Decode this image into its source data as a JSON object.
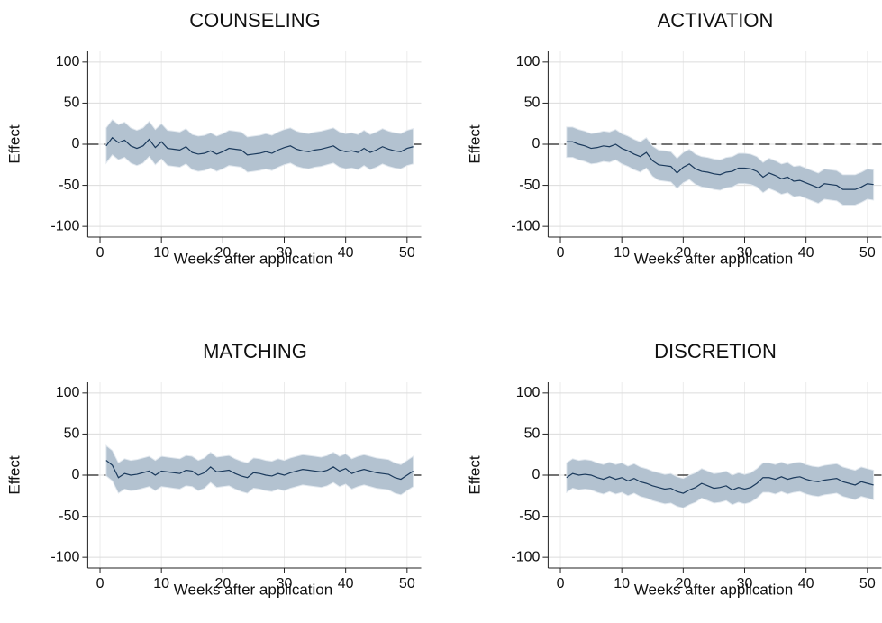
{
  "chart_data": [
    {
      "type": "line",
      "title": "COUNSELING",
      "xlabel": "Weeks after application",
      "ylabel": "Effect",
      "x": [
        1,
        2,
        3,
        4,
        5,
        6,
        7,
        8,
        9,
        10,
        11,
        12,
        13,
        14,
        15,
        16,
        17,
        18,
        19,
        20,
        21,
        22,
        23,
        24,
        25,
        26,
        27,
        28,
        29,
        30,
        31,
        32,
        33,
        34,
        35,
        36,
        37,
        38,
        39,
        40,
        41,
        42,
        43,
        44,
        45,
        46,
        47,
        48,
        49,
        50,
        51
      ],
      "values": [
        -2,
        8,
        2,
        5,
        -2,
        -5,
        -2,
        6,
        -4,
        3,
        -5,
        -6,
        -7,
        -3,
        -10,
        -12,
        -11,
        -8,
        -12,
        -9,
        -5,
        -6,
        -7,
        -13,
        -12,
        -11,
        -9,
        -11,
        -7,
        -4,
        -2,
        -6,
        -8,
        -9,
        -7,
        -6,
        -4,
        -2,
        -7,
        -9,
        -8,
        -10,
        -5,
        -10,
        -7,
        -3,
        -6,
        -8,
        -9,
        -5,
        -3
      ],
      "upper": [
        20,
        30,
        24,
        27,
        20,
        17,
        20,
        28,
        18,
        25,
        17,
        16,
        15,
        19,
        12,
        10,
        11,
        14,
        10,
        13,
        17,
        16,
        15,
        9,
        10,
        11,
        13,
        11,
        15,
        18,
        20,
        16,
        14,
        13,
        15,
        16,
        18,
        20,
        15,
        13,
        14,
        12,
        17,
        12,
        15,
        19,
        16,
        14,
        13,
        17,
        19
      ],
      "lower": [
        -23,
        -13,
        -19,
        -16,
        -23,
        -26,
        -23,
        -15,
        -25,
        -18,
        -26,
        -27,
        -28,
        -24,
        -31,
        -33,
        -32,
        -29,
        -33,
        -30,
        -26,
        -27,
        -28,
        -34,
        -33,
        -32,
        -30,
        -32,
        -28,
        -25,
        -23,
        -27,
        -29,
        -30,
        -28,
        -27,
        -25,
        -23,
        -28,
        -30,
        -29,
        -31,
        -26,
        -31,
        -28,
        -24,
        -27,
        -29,
        -30,
        -26,
        -24
      ],
      "xlim": [
        -2,
        52.3
      ],
      "ylim": [
        -113,
        113
      ],
      "xticks": [
        0,
        10,
        20,
        30,
        40,
        50
      ],
      "yticks": [
        100,
        50,
        0,
        -50,
        -100
      ],
      "grid": true,
      "refline": 0,
      "color": "#1b3a5c",
      "band_color": "#b3c2d0"
    },
    {
      "type": "line",
      "title": "ACTIVATION",
      "xlabel": "Weeks after application",
      "ylabel": "Effect",
      "x": [
        1,
        2,
        3,
        4,
        5,
        6,
        7,
        8,
        9,
        10,
        11,
        12,
        13,
        14,
        15,
        16,
        17,
        18,
        19,
        20,
        21,
        22,
        23,
        24,
        25,
        26,
        27,
        28,
        29,
        30,
        31,
        32,
        33,
        34,
        35,
        36,
        37,
        38,
        39,
        40,
        41,
        42,
        43,
        44,
        45,
        46,
        47,
        48,
        49,
        50,
        51
      ],
      "values": [
        3,
        3,
        0,
        -2,
        -5,
        -4,
        -2,
        -3,
        0,
        -5,
        -8,
        -12,
        -15,
        -10,
        -20,
        -25,
        -26,
        -27,
        -35,
        -28,
        -24,
        -30,
        -33,
        -34,
        -36,
        -37,
        -34,
        -33,
        -29,
        -29,
        -30,
        -33,
        -40,
        -35,
        -38,
        -42,
        -40,
        -45,
        -44,
        -47,
        -50,
        -53,
        -48,
        -49,
        -50,
        -55,
        -55,
        -55,
        -52,
        -48,
        -49
      ],
      "upper": [
        21,
        21,
        18,
        16,
        13,
        14,
        16,
        15,
        18,
        13,
        10,
        6,
        3,
        8,
        -2,
        -7,
        -8,
        -9,
        -17,
        -10,
        -6,
        -12,
        -15,
        -16,
        -18,
        -19,
        -16,
        -15,
        -11,
        -11,
        -12,
        -15,
        -22,
        -17,
        -20,
        -24,
        -22,
        -27,
        -26,
        -29,
        -32,
        -35,
        -30,
        -31,
        -32,
        -37,
        -37,
        -37,
        -34,
        -30,
        -31
      ],
      "lower": [
        -16,
        -16,
        -19,
        -21,
        -24,
        -23,
        -21,
        -22,
        -19,
        -24,
        -27,
        -31,
        -34,
        -29,
        -39,
        -44,
        -45,
        -46,
        -54,
        -47,
        -43,
        -49,
        -52,
        -53,
        -55,
        -56,
        -53,
        -52,
        -48,
        -48,
        -49,
        -52,
        -59,
        -54,
        -57,
        -61,
        -59,
        -64,
        -63,
        -66,
        -69,
        -72,
        -67,
        -68,
        -69,
        -74,
        -74,
        -74,
        -71,
        -67,
        -68
      ],
      "xlim": [
        -2,
        52.3
      ],
      "ylim": [
        -113,
        113
      ],
      "xticks": [
        0,
        10,
        20,
        30,
        40,
        50
      ],
      "yticks": [
        100,
        50,
        0,
        -50,
        -100
      ],
      "grid": true,
      "refline": 0,
      "color": "#1b3a5c",
      "band_color": "#b3c2d0"
    },
    {
      "type": "line",
      "title": "MATCHING",
      "xlabel": "Weeks after application",
      "ylabel": "Effect",
      "x": [
        1,
        2,
        3,
        4,
        5,
        6,
        7,
        8,
        9,
        10,
        11,
        12,
        13,
        14,
        15,
        16,
        17,
        18,
        19,
        20,
        21,
        22,
        23,
        24,
        25,
        26,
        27,
        28,
        29,
        30,
        31,
        32,
        33,
        34,
        35,
        36,
        37,
        38,
        39,
        40,
        41,
        42,
        43,
        44,
        45,
        46,
        47,
        48,
        49,
        50,
        51
      ],
      "values": [
        18,
        12,
        -3,
        2,
        0,
        1,
        3,
        5,
        0,
        5,
        4,
        3,
        2,
        6,
        5,
        0,
        3,
        10,
        4,
        5,
        6,
        2,
        -1,
        -3,
        3,
        2,
        0,
        -1,
        2,
        0,
        3,
        5,
        7,
        6,
        5,
        4,
        6,
        10,
        5,
        8,
        2,
        5,
        7,
        5,
        3,
        2,
        1,
        -3,
        -5,
        0,
        5
      ],
      "upper": [
        36,
        30,
        15,
        20,
        18,
        19,
        21,
        23,
        18,
        23,
        22,
        21,
        20,
        24,
        23,
        18,
        21,
        28,
        22,
        23,
        24,
        20,
        17,
        15,
        21,
        20,
        18,
        17,
        20,
        18,
        21,
        23,
        25,
        24,
        23,
        22,
        24,
        28,
        23,
        26,
        20,
        23,
        25,
        23,
        21,
        20,
        19,
        15,
        13,
        18,
        23
      ],
      "lower": [
        -1,
        -7,
        -22,
        -17,
        -19,
        -18,
        -16,
        -14,
        -19,
        -14,
        -15,
        -16,
        -17,
        -13,
        -14,
        -19,
        -16,
        -9,
        -15,
        -14,
        -13,
        -17,
        -20,
        -22,
        -16,
        -17,
        -19,
        -20,
        -17,
        -19,
        -16,
        -14,
        -12,
        -13,
        -14,
        -15,
        -13,
        -9,
        -14,
        -11,
        -17,
        -14,
        -12,
        -14,
        -16,
        -17,
        -18,
        -22,
        -24,
        -19,
        -14
      ],
      "xlim": [
        -2,
        52.3
      ],
      "ylim": [
        -113,
        113
      ],
      "xticks": [
        0,
        10,
        20,
        30,
        40,
        50
      ],
      "yticks": [
        100,
        50,
        0,
        -50,
        -100
      ],
      "grid": true,
      "refline": 0,
      "color": "#1b3a5c",
      "band_color": "#b3c2d0"
    },
    {
      "type": "line",
      "title": "DISCRETION",
      "xlabel": "Weeks after application",
      "ylabel": "Effect",
      "x": [
        1,
        2,
        3,
        4,
        5,
        6,
        7,
        8,
        9,
        10,
        11,
        12,
        13,
        14,
        15,
        16,
        17,
        18,
        19,
        20,
        21,
        22,
        23,
        24,
        25,
        26,
        27,
        28,
        29,
        30,
        31,
        32,
        33,
        34,
        35,
        36,
        37,
        38,
        39,
        40,
        41,
        42,
        43,
        44,
        45,
        46,
        47,
        48,
        49,
        50,
        51
      ],
      "values": [
        -3,
        2,
        0,
        1,
        0,
        -3,
        -5,
        -2,
        -5,
        -3,
        -7,
        -4,
        -8,
        -10,
        -13,
        -15,
        -17,
        -16,
        -20,
        -22,
        -18,
        -15,
        -10,
        -13,
        -16,
        -15,
        -13,
        -18,
        -15,
        -17,
        -15,
        -10,
        -3,
        -3,
        -5,
        -2,
        -5,
        -3,
        -2,
        -5,
        -7,
        -8,
        -6,
        -5,
        -4,
        -8,
        -10,
        -12,
        -8,
        -10,
        -12
      ],
      "upper": [
        15,
        20,
        18,
        19,
        18,
        15,
        13,
        16,
        13,
        15,
        11,
        14,
        10,
        8,
        5,
        3,
        1,
        2,
        -2,
        -4,
        0,
        3,
        8,
        5,
        2,
        3,
        5,
        0,
        3,
        1,
        3,
        8,
        15,
        15,
        13,
        16,
        13,
        15,
        16,
        13,
        11,
        10,
        12,
        13,
        14,
        10,
        8,
        6,
        10,
        8,
        6
      ],
      "lower": [
        -21,
        -16,
        -18,
        -17,
        -18,
        -21,
        -23,
        -20,
        -23,
        -21,
        -25,
        -22,
        -26,
        -28,
        -31,
        -33,
        -35,
        -34,
        -38,
        -40,
        -36,
        -33,
        -28,
        -31,
        -34,
        -33,
        -31,
        -36,
        -33,
        -35,
        -33,
        -28,
        -21,
        -21,
        -23,
        -20,
        -23,
        -21,
        -20,
        -23,
        -25,
        -26,
        -24,
        -23,
        -22,
        -26,
        -28,
        -30,
        -26,
        -28,
        -30
      ],
      "xlim": [
        -2,
        52.3
      ],
      "ylim": [
        -113,
        113
      ],
      "xticks": [
        0,
        10,
        20,
        30,
        40,
        50
      ],
      "yticks": [
        100,
        50,
        0,
        -50,
        -100
      ],
      "grid": true,
      "refline": 0,
      "color": "#1b3a5c",
      "band_color": "#b3c2d0"
    }
  ]
}
